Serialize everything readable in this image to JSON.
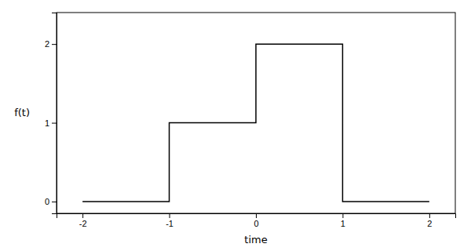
{
  "chart_data": {
    "type": "line",
    "xlabel": "time",
    "ylabel": "f(t)",
    "x": [
      -2,
      -1,
      -1,
      0,
      0,
      1,
      1,
      2
    ],
    "values": [
      0,
      0,
      1,
      1,
      2,
      2,
      0,
      0
    ],
    "color": "#000000",
    "xlim": [
      -2.3,
      2.3
    ],
    "ylim": [
      -0.15,
      2.4
    ],
    "xticks": [
      -2,
      -1,
      0,
      1,
      2
    ],
    "yticks": [
      0,
      1,
      2
    ],
    "grid": false
  }
}
